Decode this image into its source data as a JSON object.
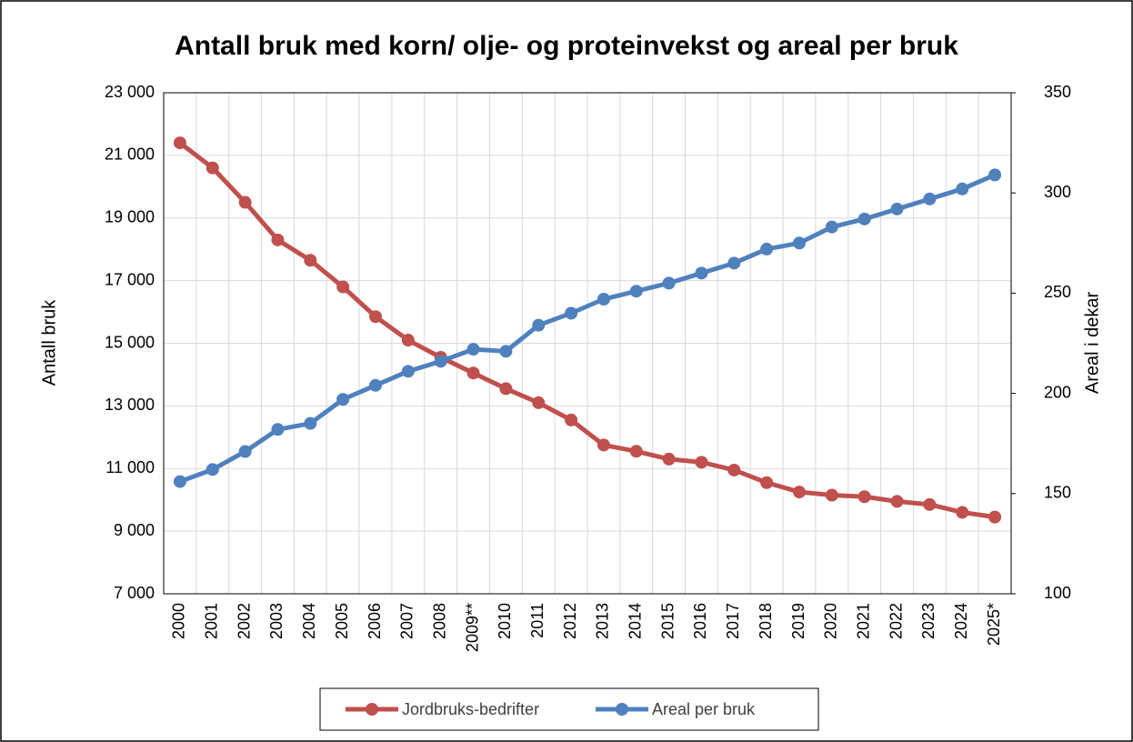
{
  "chart_data": {
    "type": "line",
    "title": "Antall bruk med korn/ olje- og proteinvekst og areal per bruk",
    "y_label": "Antall bruk",
    "y2_label": "Areal i dekar",
    "categories": [
      "2000",
      "2001",
      "2002",
      "2003",
      "2004",
      "2005",
      "2006",
      "2007",
      "2008",
      "2009**",
      "2010",
      "2011",
      "2012",
      "2013",
      "2014",
      "2015",
      "2016",
      "2017",
      "2018",
      "2019",
      "2020",
      "2021",
      "2022",
      "2023",
      "2024",
      "2025*"
    ],
    "series": [
      {
        "name": "Jordbruks-bedrifter",
        "color": "#c0504d",
        "values": [
          21400,
          20600,
          19500,
          18300,
          17650,
          16800,
          15850,
          15100,
          14550,
          14050,
          13550,
          13100,
          12550,
          11750,
          11550,
          11300,
          11200,
          10950,
          10550,
          10250,
          10150,
          10100,
          9950,
          9850,
          9600,
          9450
        ]
      },
      {
        "name": "Areal per bruk",
        "color": "#4f81bd",
        "axis": "y2",
        "values": [
          156,
          162,
          171,
          182,
          185,
          197,
          204,
          211,
          216,
          222,
          221,
          234,
          240,
          247,
          251,
          255,
          260,
          265,
          272,
          275,
          283,
          287,
          292,
          297,
          302,
          309
        ]
      }
    ],
    "ylim": [
      7000,
      23000
    ],
    "yticks": [
      {
        "value": 7000,
        "label": "7 000"
      },
      {
        "value": 9000,
        "label": "9 000"
      },
      {
        "value": 11000,
        "label": "11 000"
      },
      {
        "value": 13000,
        "label": "13 000"
      },
      {
        "value": 15000,
        "label": "15 000"
      },
      {
        "value": 17000,
        "label": "17 000"
      },
      {
        "value": 19000,
        "label": "19 000"
      },
      {
        "value": 21000,
        "label": "21 000"
      },
      {
        "value": 23000,
        "label": "23 000"
      }
    ],
    "y2lim": [
      100,
      350
    ],
    "y2ticks": [
      100,
      150,
      200,
      250,
      300,
      350
    ],
    "grid": true,
    "legend": "bottom"
  }
}
